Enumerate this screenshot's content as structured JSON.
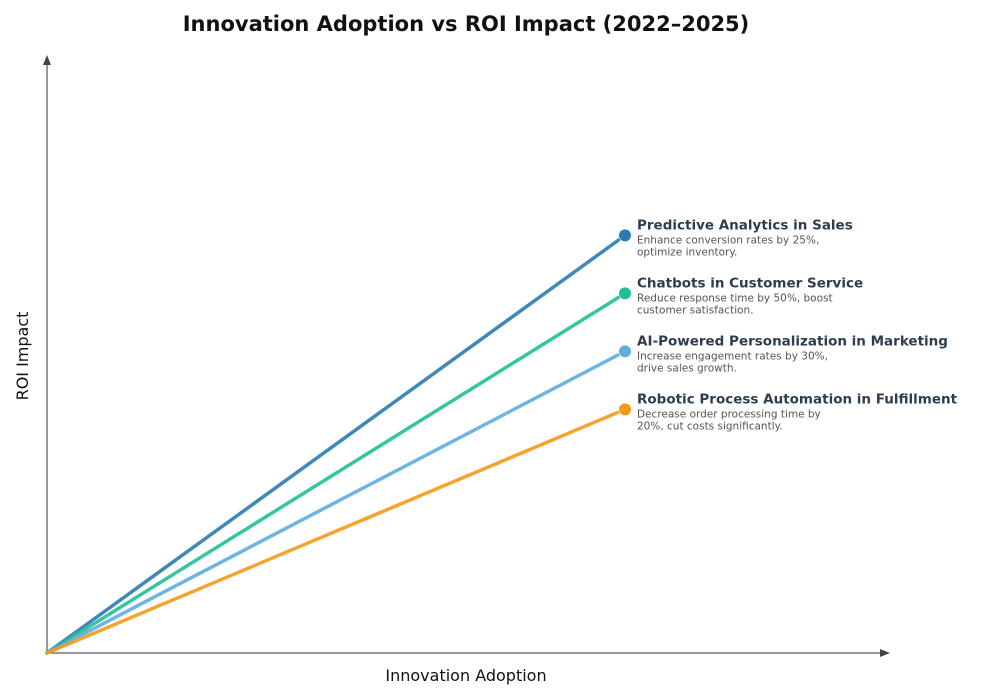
{
  "chart_data": {
    "type": "line",
    "title": "Innovation Adoption vs ROI Impact (2022–2025)",
    "xlabel": "Innovation Adoption",
    "ylabel": "ROI Impact",
    "grid": false,
    "legend": "direct labels at line ends",
    "series": [
      {
        "name": "Predictive Analytics in Sales",
        "description_lines": [
          "Enhance conversion rates by 25%,",
          "optimize inventory."
        ],
        "color": "#2b7bb0",
        "x": [
          0,
          1
        ],
        "y": [
          0,
          0.72
        ]
      },
      {
        "name": "Chatbots in Customer Service",
        "description_lines": [
          "Reduce response time by 50%, boost",
          "customer satisfaction."
        ],
        "color": "#1fbf95",
        "x": [
          0,
          1
        ],
        "y": [
          0,
          0.62
        ]
      },
      {
        "name": "AI-Powered Personalization in Marketing",
        "description_lines": [
          "Increase engagement rates by 30%,",
          "drive sales growth."
        ],
        "color": "#5fade0",
        "x": [
          0,
          1
        ],
        "y": [
          0,
          0.52
        ]
      },
      {
        "name": "Robotic Process Automation in Fulfillment",
        "description_lines": [
          "Decrease order processing time by",
          "20%, cut costs significantly."
        ],
        "color": "#f29b18",
        "x": [
          0,
          1
        ],
        "y": [
          0,
          0.42
        ]
      }
    ]
  }
}
